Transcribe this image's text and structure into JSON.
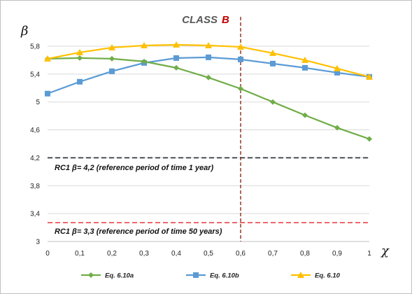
{
  "chart_data": {
    "type": "line",
    "title_main": "CLASS",
    "title_accent": "B",
    "xlabel": "χ",
    "ylabel": "β",
    "xlim": [
      0,
      1
    ],
    "ylim": [
      3,
      5.9
    ],
    "x": [
      0,
      0.1,
      0.2,
      0.3,
      0.4,
      0.5,
      0.6,
      0.7,
      0.8,
      0.9,
      1
    ],
    "x_tick_labels": [
      "0",
      "0,1",
      "0,2",
      "0,3",
      "0,4",
      "0,5",
      "0,6",
      "0,7",
      "0,8",
      "0,9",
      "1"
    ],
    "y_ticks": [
      3,
      3.4,
      3.8,
      4.2,
      4.6,
      5,
      5.4,
      5.8
    ],
    "y_tick_labels": [
      "3",
      "3,4",
      "3,8",
      "4,2",
      "4,6",
      "5",
      "5,4",
      "5,8"
    ],
    "grid": "horizontal",
    "legend_position": "bottom",
    "series": [
      {
        "name": "Eq. 6.10a",
        "color": "#70ad47",
        "marker": "diamond",
        "values": [
          5.62,
          5.63,
          5.62,
          5.58,
          5.49,
          5.35,
          5.19,
          5.0,
          4.81,
          4.63,
          4.47
        ]
      },
      {
        "name": "Eq. 6.10b",
        "color": "#5b9bd5",
        "marker": "square",
        "values": [
          5.12,
          5.29,
          5.44,
          5.56,
          5.63,
          5.64,
          5.61,
          5.55,
          5.49,
          5.42,
          5.36
        ]
      },
      {
        "name": "Eq. 6.10",
        "color": "#ffc000",
        "marker": "triangle",
        "values": [
          5.62,
          5.71,
          5.78,
          5.81,
          5.82,
          5.81,
          5.79,
          5.7,
          5.6,
          5.48,
          5.36
        ]
      }
    ],
    "reference_lines": [
      {
        "value": 4.2,
        "color": "#222a35",
        "label": "RC1 β= 4,2 (reference period of time 1 year)"
      },
      {
        "value": 3.27,
        "color": "#e8444a",
        "label": "RC1 β= 3,3 (reference period of time 50 years)"
      }
    ],
    "vertical_line": {
      "x": 0.6,
      "color": "#8b2a1a"
    }
  },
  "colors": {
    "grid": "#d9d9d9",
    "axis": "#bfbfbf",
    "border": "#bfbfbf",
    "title_main": "#595959",
    "title_accent": "#c00000"
  }
}
